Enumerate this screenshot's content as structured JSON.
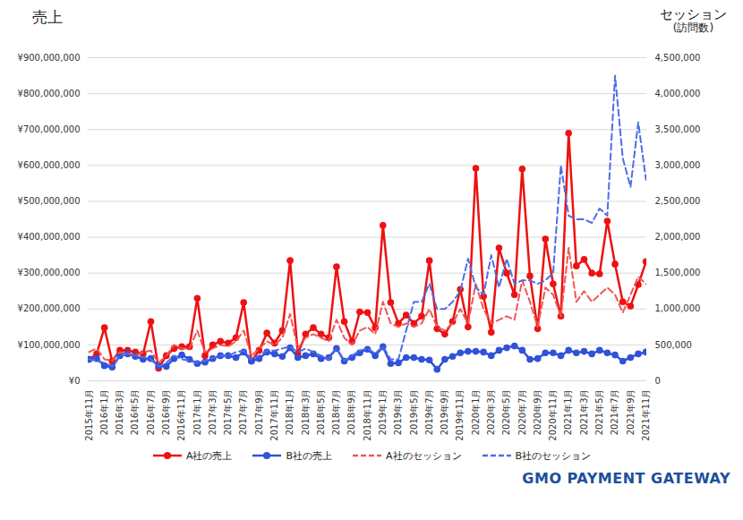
{
  "chart_data": {
    "type": "line",
    "y_label": "売上",
    "y2_label": [
      "セッション",
      "(訪問数)"
    ],
    "caption": "GMO PAYMENT GATEWAY",
    "categories": [
      "2015年11月",
      null,
      "2016年1月",
      null,
      "2016年3月",
      null,
      "2016年5月",
      null,
      "2016年7月",
      null,
      "2016年9月",
      null,
      "2016年11月",
      null,
      "2017年1月",
      null,
      "2017年3月",
      null,
      "2017年5月",
      null,
      "2017年7月",
      null,
      "2017年9月",
      null,
      "2017年11月",
      null,
      "2018年1月",
      null,
      "2018年3月",
      null,
      "2018年5月",
      null,
      "2018年7月",
      null,
      "2018年9月",
      null,
      "2018年11月",
      null,
      "2019年1月",
      null,
      "2019年3月",
      null,
      "2019年5月",
      null,
      "2019年7月",
      null,
      "2019年9月",
      null,
      "2019年11月",
      null,
      "2020年1月",
      null,
      "2020年3月",
      null,
      "2020年5月",
      null,
      "2020年7月",
      null,
      "2020年9月",
      null,
      "2020年11月",
      null,
      "2021年1月",
      null,
      "2021年3月",
      null,
      "2021年5月",
      null,
      "2021年7月",
      null,
      "2021年9月",
      null,
      "2021年11月"
    ],
    "ylim": [
      0,
      900000000
    ],
    "yticks": [
      {
        "value": 0,
        "label": "¥0"
      },
      {
        "value": 100000000,
        "label": "¥100,000,000"
      },
      {
        "value": 200000000,
        "label": "¥200,000,000"
      },
      {
        "value": 300000000,
        "label": "¥300,000,000"
      },
      {
        "value": 400000000,
        "label": "¥400,000,000"
      },
      {
        "value": 500000000,
        "label": "¥500,000,000"
      },
      {
        "value": 600000000,
        "label": "¥600,000,000"
      },
      {
        "value": 700000000,
        "label": "¥700,000,000"
      },
      {
        "value": 800000000,
        "label": "¥800,000,000"
      },
      {
        "value": 900000000,
        "label": "¥900,000,000"
      }
    ],
    "y2lim": [
      0,
      4500000
    ],
    "y2ticks": [
      0,
      {
        "value": 500000,
        "label": "500,000"
      },
      {
        "value": 1000000,
        "label": "1,000,000"
      },
      {
        "value": 1500000,
        "label": "1,500,000"
      },
      {
        "value": 2000000,
        "label": "2,000,000"
      },
      {
        "value": 2500000,
        "label": "2,500,000"
      },
      {
        "value": 3000000,
        "label": "3,000,000"
      },
      {
        "value": 3500000,
        "label": "3,500,000"
      },
      {
        "value": 4000000,
        "label": "4,000,000"
      },
      {
        "value": 4500000,
        "label": "4,500,000"
      }
    ],
    "grid": true,
    "legend": "bottom",
    "series": [
      {
        "name": "A社の売上",
        "color": "#ee1111",
        "marker": "circle",
        "line_style": "solid",
        "axis": "y",
        "values": [
          60000000,
          75000000,
          148000000,
          55000000,
          85000000,
          85000000,
          80000000,
          75000000,
          165000000,
          35000000,
          70000000,
          90000000,
          95000000,
          95000000,
          230000000,
          70000000,
          100000000,
          110000000,
          105000000,
          120000000,
          218000000,
          55000000,
          85000000,
          133000000,
          105000000,
          140000000,
          335000000,
          75000000,
          130000000,
          148000000,
          130000000,
          120000000,
          318000000,
          165000000,
          110000000,
          192000000,
          190000000,
          148000000,
          433000000,
          218000000,
          160000000,
          183000000,
          160000000,
          180000000,
          335000000,
          145000000,
          130000000,
          165000000,
          255000000,
          150000000,
          592000000,
          235000000,
          135000000,
          370000000,
          300000000,
          240000000,
          590000000,
          292000000,
          145000000,
          395000000,
          270000000,
          180000000,
          690000000,
          320000000,
          338000000,
          300000000,
          298000000,
          445000000,
          325000000,
          220000000,
          208000000,
          268000000,
          332000000
        ]
      },
      {
        "name": "B社の売上",
        "color": "#2f52d8",
        "marker": "circle",
        "line_style": "solid",
        "axis": "y",
        "values": [
          60000000,
          62000000,
          42000000,
          38000000,
          70000000,
          75000000,
          68000000,
          60000000,
          62000000,
          42000000,
          40000000,
          62000000,
          72000000,
          60000000,
          48000000,
          52000000,
          62000000,
          70000000,
          70000000,
          65000000,
          80000000,
          55000000,
          62000000,
          80000000,
          75000000,
          68000000,
          92000000,
          65000000,
          70000000,
          75000000,
          62000000,
          65000000,
          90000000,
          55000000,
          65000000,
          78000000,
          88000000,
          70000000,
          95000000,
          48000000,
          50000000,
          65000000,
          65000000,
          60000000,
          58000000,
          32000000,
          60000000,
          68000000,
          78000000,
          82000000,
          82000000,
          80000000,
          70000000,
          85000000,
          92000000,
          97000000,
          85000000,
          60000000,
          62000000,
          78000000,
          78000000,
          70000000,
          85000000,
          78000000,
          82000000,
          75000000,
          85000000,
          78000000,
          72000000,
          55000000,
          65000000,
          75000000,
          80000000
        ]
      },
      {
        "name": "A社のセッション",
        "color": "#f25555",
        "marker": "none",
        "line_style": "dashed",
        "axis": "y2",
        "values": [
          400000,
          450000,
          300000,
          280000,
          400000,
          380000,
          350000,
          400000,
          420000,
          250000,
          350000,
          500000,
          450000,
          450000,
          700000,
          400000,
          450000,
          500000,
          480000,
          550000,
          700000,
          350000,
          450000,
          550000,
          500000,
          600000,
          930000,
          450000,
          600000,
          650000,
          600000,
          550000,
          850000,
          600000,
          500000,
          700000,
          750000,
          650000,
          1100000,
          800000,
          750000,
          800000,
          750000,
          800000,
          1000000,
          750000,
          700000,
          800000,
          1000000,
          800000,
          1350000,
          1000000,
          800000,
          850000,
          900000,
          850000,
          1400000,
          1100000,
          750000,
          1300000,
          1200000,
          900000,
          1850000,
          1100000,
          1250000,
          1100000,
          1200000,
          1300000,
          1200000,
          950000,
          1200000,
          1450000,
          1350000
        ]
      },
      {
        "name": "B社のセッション",
        "color": "#4d6ee6",
        "marker": "none",
        "line_style": "dashed",
        "axis": "y2",
        "values": [
          300000,
          280000,
          250000,
          200000,
          350000,
          380000,
          350000,
          330000,
          300000,
          200000,
          250000,
          350000,
          300000,
          280000,
          250000,
          280000,
          320000,
          350000,
          350000,
          400000,
          420000,
          300000,
          350000,
          420000,
          420000,
          450000,
          480000,
          400000,
          450000,
          400000,
          350000,
          300000,
          450000,
          280000,
          350000,
          420000,
          450000,
          380000,
          480000,
          300000,
          300000,
          700000,
          1100000,
          1100000,
          1350000,
          1000000,
          1000000,
          1100000,
          1250000,
          1700000,
          1300000,
          1200000,
          1750000,
          1300000,
          1700000,
          1350000,
          1400000,
          1400000,
          1350000,
          1400000,
          1500000,
          3000000,
          2300000,
          2250000,
          2250000,
          2200000,
          2400000,
          2300000,
          4250000,
          3100000,
          2700000,
          3600000,
          2800000
        ]
      }
    ]
  }
}
